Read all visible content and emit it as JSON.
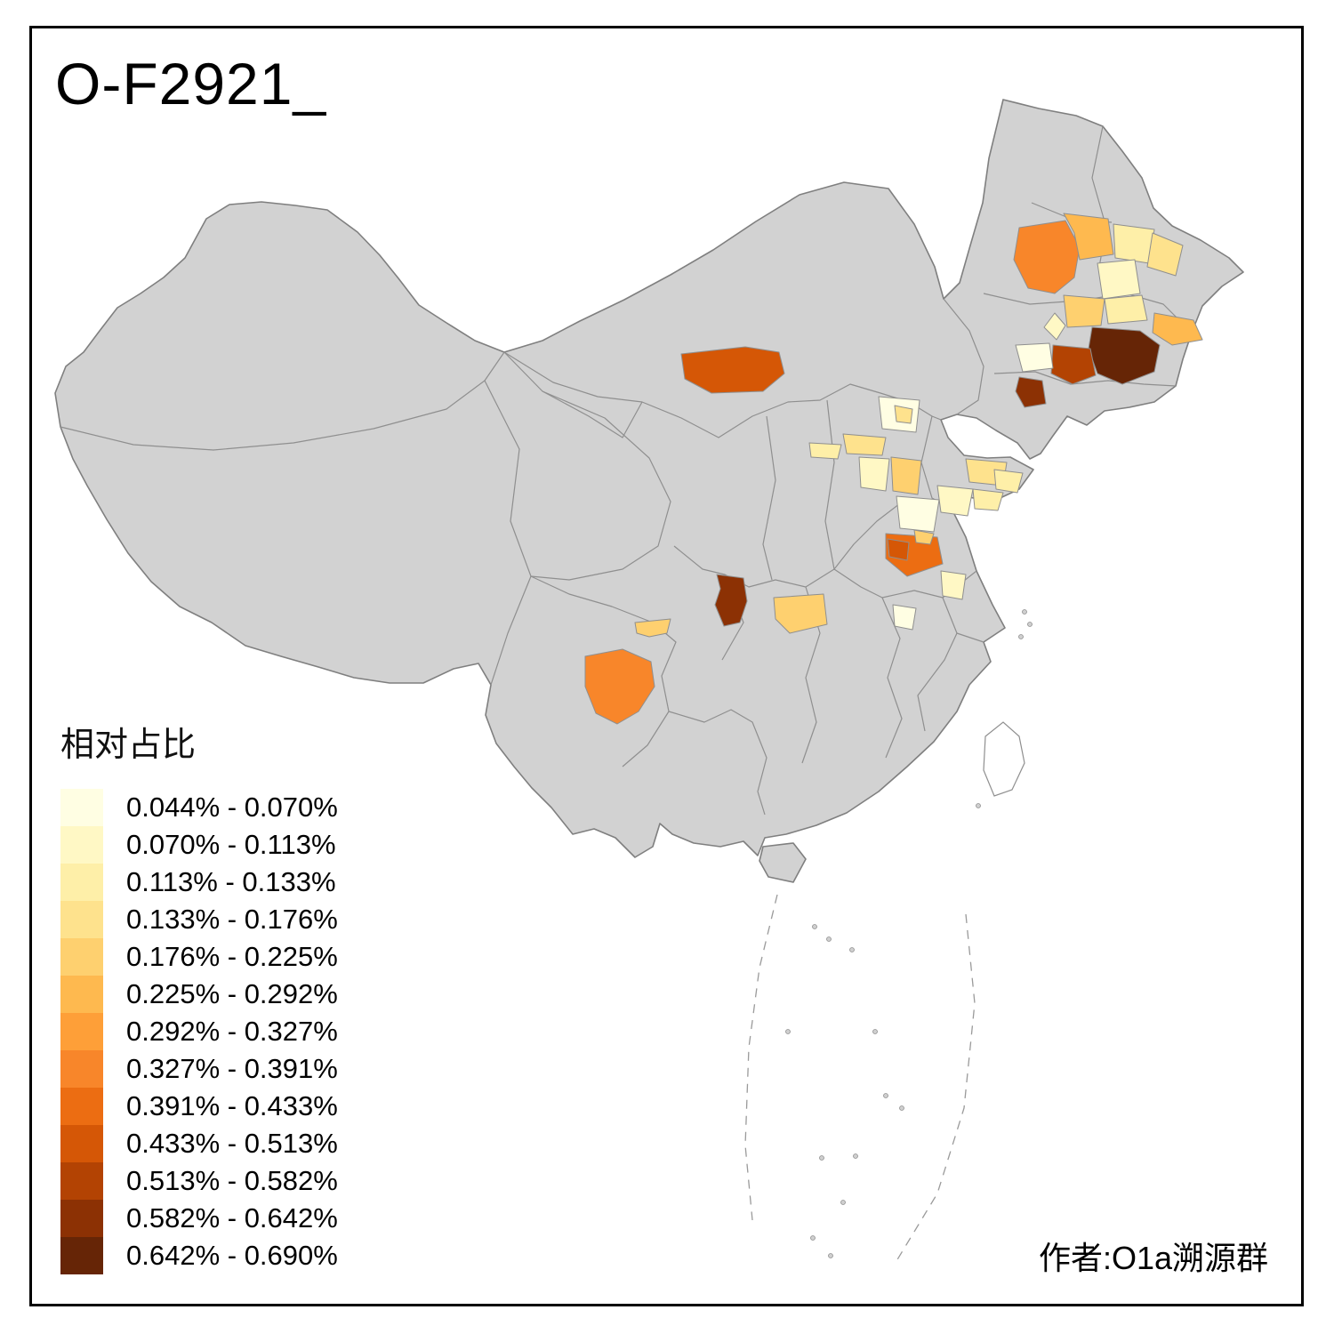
{
  "title": "O-F2921_",
  "attribution": "作者:O1a溯源群",
  "legend": {
    "title": "相对占比",
    "bins": [
      {
        "range": "0.044% - 0.070%",
        "color": "#FFFEE3"
      },
      {
        "range": "0.070% - 0.113%",
        "color": "#FFF8C5"
      },
      {
        "range": "0.113% - 0.133%",
        "color": "#FEEFA8"
      },
      {
        "range": "0.133% - 0.176%",
        "color": "#FEE28D"
      },
      {
        "range": "0.176% - 0.225%",
        "color": "#FED06F"
      },
      {
        "range": "0.225% - 0.292%",
        "color": "#FEB94F"
      },
      {
        "range": "0.292% - 0.327%",
        "color": "#FE9F38"
      },
      {
        "range": "0.327% - 0.391%",
        "color": "#F8862A"
      },
      {
        "range": "0.391% - 0.433%",
        "color": "#EC6D12"
      },
      {
        "range": "0.433% - 0.513%",
        "color": "#D55706"
      },
      {
        "range": "0.513% - 0.582%",
        "color": "#B34303"
      },
      {
        "range": "0.582% - 0.642%",
        "color": "#8C3104"
      },
      {
        "range": "0.642% - 0.690%",
        "color": "#662506"
      }
    ]
  },
  "map": {
    "base_color": "#D2D2D2",
    "border_color": "#7F7F7F",
    "regions": [
      {
        "id": "r1",
        "bin": 7
      },
      {
        "id": "r2",
        "bin": 5
      },
      {
        "id": "r3",
        "bin": 2
      },
      {
        "id": "r4",
        "bin": 3
      },
      {
        "id": "r5",
        "bin": 1
      },
      {
        "id": "r6",
        "bin": 4
      },
      {
        "id": "r7",
        "bin": 2
      },
      {
        "id": "r8",
        "bin": 5
      },
      {
        "id": "r9",
        "bin": 12
      },
      {
        "id": "r10",
        "bin": 10
      },
      {
        "id": "r11",
        "bin": 0
      },
      {
        "id": "r12",
        "bin": 11
      },
      {
        "id": "r13",
        "bin": 1
      },
      {
        "id": "r14",
        "bin": 9
      },
      {
        "id": "r15",
        "bin": 0
      },
      {
        "id": "r16",
        "bin": 3
      },
      {
        "id": "r17",
        "bin": 3
      },
      {
        "id": "r18",
        "bin": 2
      },
      {
        "id": "r19",
        "bin": 1
      },
      {
        "id": "r20",
        "bin": 4
      },
      {
        "id": "r21",
        "bin": 0
      },
      {
        "id": "r22",
        "bin": 3
      },
      {
        "id": "r23",
        "bin": 2
      },
      {
        "id": "r24",
        "bin": 1
      },
      {
        "id": "r25",
        "bin": 2
      },
      {
        "id": "r26",
        "bin": 8
      },
      {
        "id": "r27",
        "bin": 9
      },
      {
        "id": "r28",
        "bin": 4
      },
      {
        "id": "r29",
        "bin": 1
      },
      {
        "id": "r30",
        "bin": 0
      },
      {
        "id": "r31",
        "bin": 11
      },
      {
        "id": "r32",
        "bin": 4
      },
      {
        "id": "r33",
        "bin": 4
      },
      {
        "id": "r34",
        "bin": 7
      }
    ]
  }
}
